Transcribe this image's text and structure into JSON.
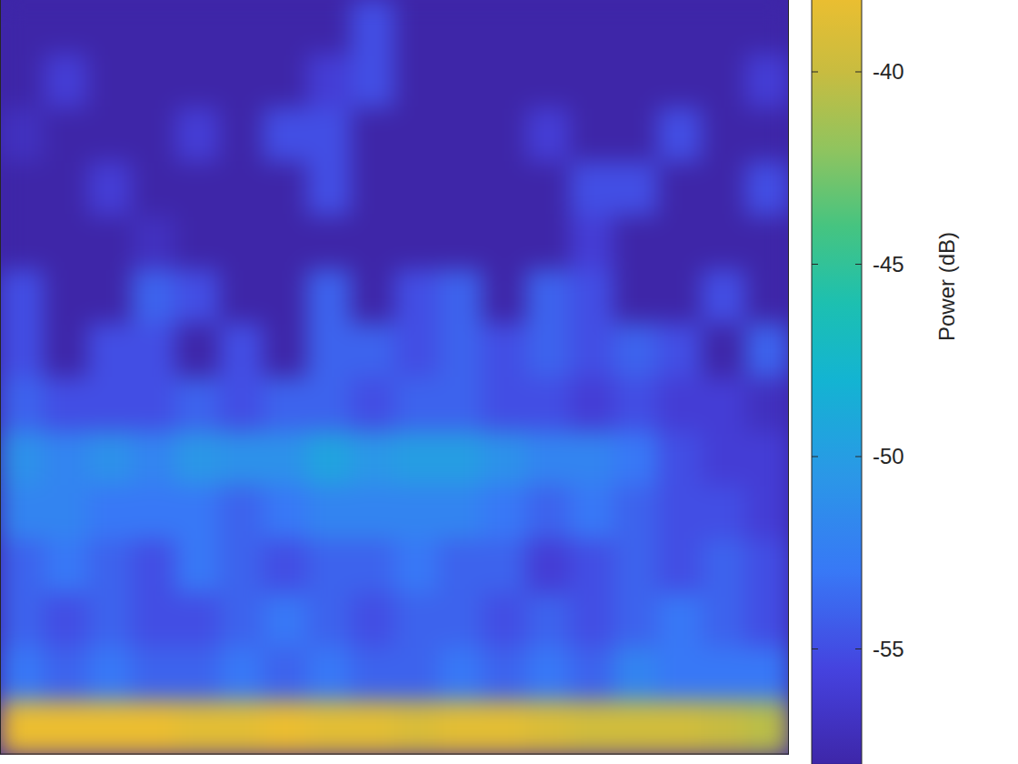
{
  "chart_data": {
    "type": "heatmap",
    "tick_labels": false,
    "cells": [
      [
        -58,
        -58,
        -58,
        -58,
        -58,
        -58,
        -58,
        -58,
        -55,
        -58,
        -58,
        -58,
        -58,
        -58,
        -58,
        -58,
        -58,
        -58
      ],
      [
        -58,
        -56,
        -58,
        -58,
        -58,
        -58,
        -58,
        -56,
        -55,
        -58,
        -58,
        -58,
        -58,
        -58,
        -58,
        -58,
        -58,
        -56
      ],
      [
        -57,
        -58,
        -58,
        -58,
        -56,
        -58,
        -55,
        -55,
        -58,
        -58,
        -58,
        -58,
        -56,
        -58,
        -58,
        -55,
        -58,
        -58
      ],
      [
        -58,
        -58,
        -56,
        -58,
        -58,
        -58,
        -58,
        -55,
        -58,
        -58,
        -58,
        -58,
        -58,
        -55,
        -55,
        -58,
        -58,
        -55
      ],
      [
        -58,
        -58,
        -58,
        -57,
        -58,
        -58,
        -58,
        -58,
        -58,
        -58,
        -58,
        -58,
        -58,
        -56,
        -58,
        -58,
        -58,
        -58
      ],
      [
        -55,
        -58,
        -58,
        -54,
        -55,
        -58,
        -58,
        -54,
        -58,
        -55,
        -54,
        -58,
        -54,
        -55,
        -58,
        -58,
        -55,
        -58
      ],
      [
        -55,
        -58,
        -55,
        -55,
        -58,
        -55,
        -58,
        -54,
        -54,
        -55,
        -54,
        -55,
        -54,
        -55,
        -54,
        -55,
        -58,
        -54
      ],
      [
        -54,
        -55,
        -55,
        -55,
        -54,
        -55,
        -54,
        -54,
        -55,
        -54,
        -54,
        -55,
        -55,
        -56,
        -55,
        -56,
        -56,
        -57
      ],
      [
        -51,
        -52,
        -51,
        -52,
        -50.5,
        -51,
        -51,
        -49.5,
        -50.5,
        -50,
        -50,
        -51,
        -52,
        -52,
        -53,
        -55,
        -56,
        -56
      ],
      [
        -52,
        -52,
        -53,
        -53,
        -53,
        -54,
        -53,
        -52,
        -52,
        -52,
        -52,
        -53,
        -54,
        -53,
        -54,
        -55,
        -55,
        -56
      ],
      [
        -54,
        -53,
        -54,
        -55,
        -53,
        -54,
        -55,
        -54,
        -54,
        -53,
        -54,
        -54,
        -56,
        -55,
        -54,
        -55,
        -54,
        -55
      ],
      [
        -54,
        -55,
        -54,
        -55,
        -55,
        -54,
        -53,
        -54,
        -55,
        -54,
        -54,
        -55,
        -54,
        -55,
        -54,
        -53,
        -54,
        -55
      ],
      [
        -53,
        -54,
        -53,
        -54,
        -54,
        -53,
        -54,
        -53,
        -54,
        -54,
        -53,
        -54,
        -53,
        -54,
        -52,
        -53,
        -53,
        -53
      ],
      [
        -38,
        -38,
        -37.5,
        -38,
        -38.5,
        -38.5,
        -38,
        -38.5,
        -38.5,
        -39,
        -38.5,
        -38.5,
        -39,
        -39.5,
        -39.5,
        -39.5,
        -40,
        -40.5
      ]
    ],
    "colorbar": {
      "label": "Power (dB)",
      "lim": [
        -58,
        -38
      ],
      "ticks": [
        -55,
        -50,
        -45,
        -40
      ]
    }
  }
}
